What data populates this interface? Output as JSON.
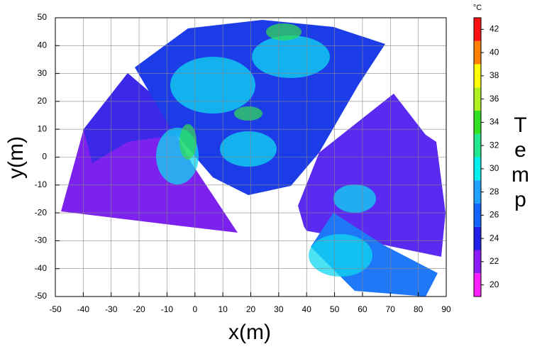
{
  "chart_data": {
    "type": "heatmap",
    "x_label": "x(m)",
    "y_label": "y(m)",
    "xlim": [
      -50,
      90
    ],
    "xticks": [
      -50,
      -40,
      -30,
      -20,
      -10,
      0,
      10,
      20,
      30,
      40,
      50,
      60,
      70,
      80,
      90
    ],
    "ylim": [
      -50,
      50
    ],
    "yticks": [
      -50,
      -40,
      -30,
      -20,
      -10,
      0,
      10,
      20,
      30,
      40,
      50
    ],
    "grid": true,
    "colorbar": {
      "label": "Temp",
      "unit": "°C",
      "lim": [
        19,
        43
      ],
      "ticks": [
        20,
        22,
        24,
        26,
        28,
        30,
        32,
        34,
        36,
        38,
        40,
        42
      ],
      "boundaries": [
        19,
        21,
        23,
        25,
        27,
        29,
        31,
        33,
        35,
        37,
        39,
        41,
        43
      ],
      "colors": [
        "#ff20ff",
        "#8a1cf5",
        "#2020e8",
        "#1464ff",
        "#20a0ff",
        "#00f0f0",
        "#20e890",
        "#30e020",
        "#b0f020",
        "#ffff00",
        "#ff8000",
        "#ff1010"
      ]
    }
  }
}
